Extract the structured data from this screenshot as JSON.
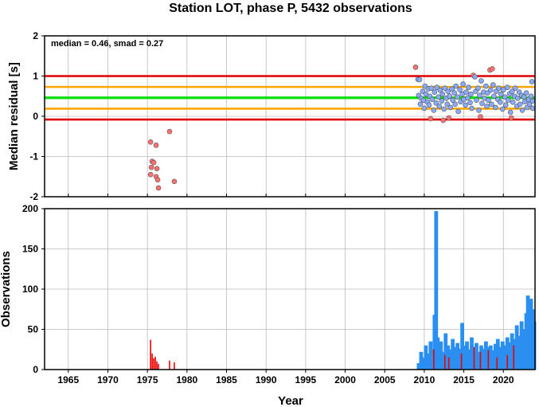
{
  "page": {
    "title": "Station LOT, phase P, 5432 observations"
  },
  "chart_data": [
    {
      "type": "scatter",
      "panel": "top",
      "title": "Station LOT, phase P, 5432 observations",
      "xlabel": "",
      "ylabel": "Median residual [s]",
      "xlim": [
        1962,
        2024
      ],
      "ylim": [
        -2,
        2
      ],
      "y_ticks": [
        "-2",
        "-1",
        "0",
        "1",
        "2"
      ],
      "grid": true,
      "annotation": "median = 0.46, smad = 0.27",
      "reference_lines": [
        {
          "value": 0.46,
          "color": "#00e000"
        },
        {
          "value": 0.73,
          "color": "#ffa500"
        },
        {
          "value": 0.19,
          "color": "#ffa500"
        },
        {
          "value": 1.0,
          "color": "#e00000"
        },
        {
          "value": -0.08,
          "color": "#e00000"
        }
      ],
      "series": [
        {
          "color": "#ff7070",
          "points": [
            [
              1975.4,
              -0.64
            ],
            [
              1975.6,
              -1.12
            ],
            [
              1975.8,
              -1.15
            ],
            [
              1975.5,
              -1.27
            ],
            [
              1975.4,
              -1.45
            ],
            [
              1976.1,
              -0.72
            ],
            [
              1976.2,
              -1.3
            ],
            [
              1976.1,
              -1.5
            ],
            [
              1976.3,
              -1.58
            ],
            [
              1976.4,
              -1.78
            ],
            [
              1977.8,
              -0.38
            ],
            [
              1978.4,
              -1.62
            ],
            [
              2008.9,
              1.22
            ],
            [
              2010.8,
              -0.06
            ],
            [
              2012.4,
              -0.1
            ],
            [
              2013.1,
              -0.04
            ],
            [
              2016.2,
              1.02
            ],
            [
              2017.1,
              -0.01
            ],
            [
              2018.3,
              1.15
            ],
            [
              2018.6,
              1.18
            ],
            [
              2021.0,
              -0.04
            ]
          ]
        },
        {
          "color": "#88aaff",
          "points": [
            [
              2009.2,
              0.92
            ],
            [
              2009.4,
              0.91
            ],
            [
              2009.3,
              0.52
            ],
            [
              2009.5,
              0.3
            ],
            [
              2009.6,
              0.45
            ],
            [
              2009.8,
              0.62
            ],
            [
              2009.9,
              0.4
            ],
            [
              2010.0,
              0.2
            ],
            [
              2010.1,
              0.75
            ],
            [
              2010.2,
              0.55
            ],
            [
              2010.4,
              0.35
            ],
            [
              2010.5,
              0.68
            ],
            [
              2010.6,
              0.28
            ],
            [
              2010.7,
              0.5
            ],
            [
              2010.9,
              0.7
            ],
            [
              2011.0,
              0.42
            ],
            [
              2011.2,
              0.15
            ],
            [
              2011.3,
              0.6
            ],
            [
              2011.5,
              0.33
            ],
            [
              2011.6,
              0.72
            ],
            [
              2011.8,
              0.48
            ],
            [
              2011.9,
              0.25
            ],
            [
              2012.0,
              0.65
            ],
            [
              2012.2,
              0.38
            ],
            [
              2012.3,
              0.55
            ],
            [
              2012.5,
              0.18
            ],
            [
              2012.6,
              0.7
            ],
            [
              2012.8,
              0.45
            ],
            [
              2012.9,
              0.3
            ],
            [
              2013.0,
              0.62
            ],
            [
              2013.2,
              0.5
            ],
            [
              2013.3,
              0.22
            ],
            [
              2013.5,
              0.68
            ],
            [
              2013.6,
              0.4
            ],
            [
              2013.8,
              0.58
            ],
            [
              2013.9,
              0.3
            ],
            [
              2014.0,
              0.75
            ],
            [
              2014.2,
              0.48
            ],
            [
              2014.3,
              0.12
            ],
            [
              2014.5,
              0.66
            ],
            [
              2014.6,
              0.36
            ],
            [
              2014.8,
              0.55
            ],
            [
              2014.9,
              0.8
            ],
            [
              2015.0,
              0.42
            ],
            [
              2015.2,
              0.28
            ],
            [
              2015.3,
              0.6
            ],
            [
              2015.5,
              0.46
            ],
            [
              2015.6,
              0.72
            ],
            [
              2015.8,
              0.34
            ],
            [
              2015.9,
              0.55
            ],
            [
              2016.0,
              0.2
            ],
            [
              2016.4,
              0.98
            ],
            [
              2016.5,
              0.62
            ],
            [
              2016.6,
              0.4
            ],
            [
              2016.8,
              0.7
            ],
            [
              2016.9,
              0.15
            ],
            [
              2017.0,
              0.52
            ],
            [
              2017.2,
              0.88
            ],
            [
              2017.3,
              0.32
            ],
            [
              2017.5,
              0.6
            ],
            [
              2017.6,
              0.45
            ],
            [
              2017.8,
              0.75
            ],
            [
              2017.9,
              0.25
            ],
            [
              2018.0,
              0.58
            ],
            [
              2018.1,
              0.4
            ],
            [
              2018.4,
              0.65
            ],
            [
              2018.5,
              0.3
            ],
            [
              2018.7,
              0.78
            ],
            [
              2018.8,
              0.5
            ],
            [
              2019.0,
              0.22
            ],
            [
              2019.1,
              0.62
            ],
            [
              2019.3,
              0.42
            ],
            [
              2019.4,
              0.7
            ],
            [
              2019.6,
              0.35
            ],
            [
              2019.7,
              0.55
            ],
            [
              2019.9,
              0.18
            ],
            [
              2020.0,
              0.66
            ],
            [
              2020.2,
              0.48
            ],
            [
              2020.3,
              0.28
            ],
            [
              2020.5,
              0.72
            ],
            [
              2020.6,
              0.4
            ],
            [
              2020.8,
              0.56
            ],
            [
              2020.9,
              0.1
            ],
            [
              2021.1,
              0.62
            ],
            [
              2021.2,
              0.35
            ],
            [
              2021.4,
              0.5
            ],
            [
              2021.5,
              0.7
            ],
            [
              2021.7,
              0.25
            ],
            [
              2021.8,
              0.45
            ],
            [
              2022.0,
              0.6
            ],
            [
              2022.1,
              0.3
            ],
            [
              2022.3,
              0.52
            ],
            [
              2022.4,
              0.15
            ],
            [
              2022.6,
              0.48
            ],
            [
              2022.7,
              0.36
            ],
            [
              2022.9,
              0.58
            ],
            [
              2023.0,
              0.22
            ],
            [
              2023.2,
              0.42
            ],
            [
              2023.3,
              0.3
            ],
            [
              2023.5,
              0.5
            ],
            [
              2023.6,
              0.86
            ],
            [
              2023.7,
              0.38
            ],
            [
              2023.8,
              0.2
            ]
          ]
        }
      ]
    },
    {
      "type": "bar",
      "panel": "bottom",
      "xlabel": "Year",
      "ylabel": "Observations",
      "xlim": [
        1962,
        2024
      ],
      "ylim": [
        0,
        200
      ],
      "x_ticks": [
        "1965",
        "1970",
        "1975",
        "1980",
        "1985",
        "1990",
        "1995",
        "2000",
        "2005",
        "2010",
        "2015",
        "2020"
      ],
      "y_ticks": [
        "0",
        "50",
        "100",
        "150",
        "200"
      ],
      "grid": true,
      "series": [
        {
          "color": "#ee0000",
          "points": [
            [
              1975.4,
              37
            ],
            [
              1975.6,
              20
            ],
            [
              1975.8,
              14
            ],
            [
              1976.0,
              16
            ],
            [
              1976.2,
              10
            ],
            [
              1976.4,
              7
            ],
            [
              1977.8,
              11
            ],
            [
              1978.4,
              9
            ],
            [
              2011.2,
              25
            ],
            [
              2012.6,
              18
            ],
            [
              2013.1,
              15
            ],
            [
              2014.7,
              20
            ],
            [
              2016.3,
              28
            ],
            [
              2017.1,
              22
            ],
            [
              2018.1,
              24
            ],
            [
              2019.2,
              15
            ],
            [
              2020.5,
              18
            ],
            [
              2021.3,
              30
            ]
          ]
        },
        {
          "color": "#2a8ff0",
          "points": [
            [
              2009.3,
              8
            ],
            [
              2009.6,
              22
            ],
            [
              2009.9,
              15
            ],
            [
              2010.2,
              30
            ],
            [
              2010.5,
              20
            ],
            [
              2010.8,
              35
            ],
            [
              2011.0,
              25
            ],
            [
              2011.3,
              68
            ],
            [
              2011.5,
              197
            ],
            [
              2011.7,
              40
            ],
            [
              2011.9,
              28
            ],
            [
              2012.1,
              35
            ],
            [
              2012.4,
              22
            ],
            [
              2012.7,
              45
            ],
            [
              2013.0,
              30
            ],
            [
              2013.3,
              25
            ],
            [
              2013.6,
              38
            ],
            [
              2013.9,
              28
            ],
            [
              2014.2,
              33
            ],
            [
              2014.5,
              26
            ],
            [
              2014.8,
              58
            ],
            [
              2015.1,
              30
            ],
            [
              2015.4,
              35
            ],
            [
              2015.7,
              25
            ],
            [
              2016.0,
              40
            ],
            [
              2016.3,
              28
            ],
            [
              2016.6,
              33
            ],
            [
              2016.9,
              22
            ],
            [
              2017.2,
              30
            ],
            [
              2017.5,
              26
            ],
            [
              2017.8,
              35
            ],
            [
              2018.1,
              28
            ],
            [
              2018.4,
              30
            ],
            [
              2018.7,
              24
            ],
            [
              2019.0,
              32
            ],
            [
              2019.3,
              38
            ],
            [
              2019.6,
              28
            ],
            [
              2019.9,
              35
            ],
            [
              2020.2,
              30
            ],
            [
              2020.5,
              40
            ],
            [
              2020.8,
              34
            ],
            [
              2021.1,
              45
            ],
            [
              2021.4,
              38
            ],
            [
              2021.7,
              55
            ],
            [
              2022.0,
              42
            ],
            [
              2022.3,
              60
            ],
            [
              2022.6,
              50
            ],
            [
              2022.9,
              70
            ],
            [
              2023.1,
              92
            ],
            [
              2023.3,
              65
            ],
            [
              2023.5,
              88
            ],
            [
              2023.7,
              75
            ],
            [
              2023.9,
              60
            ]
          ]
        }
      ]
    }
  ]
}
